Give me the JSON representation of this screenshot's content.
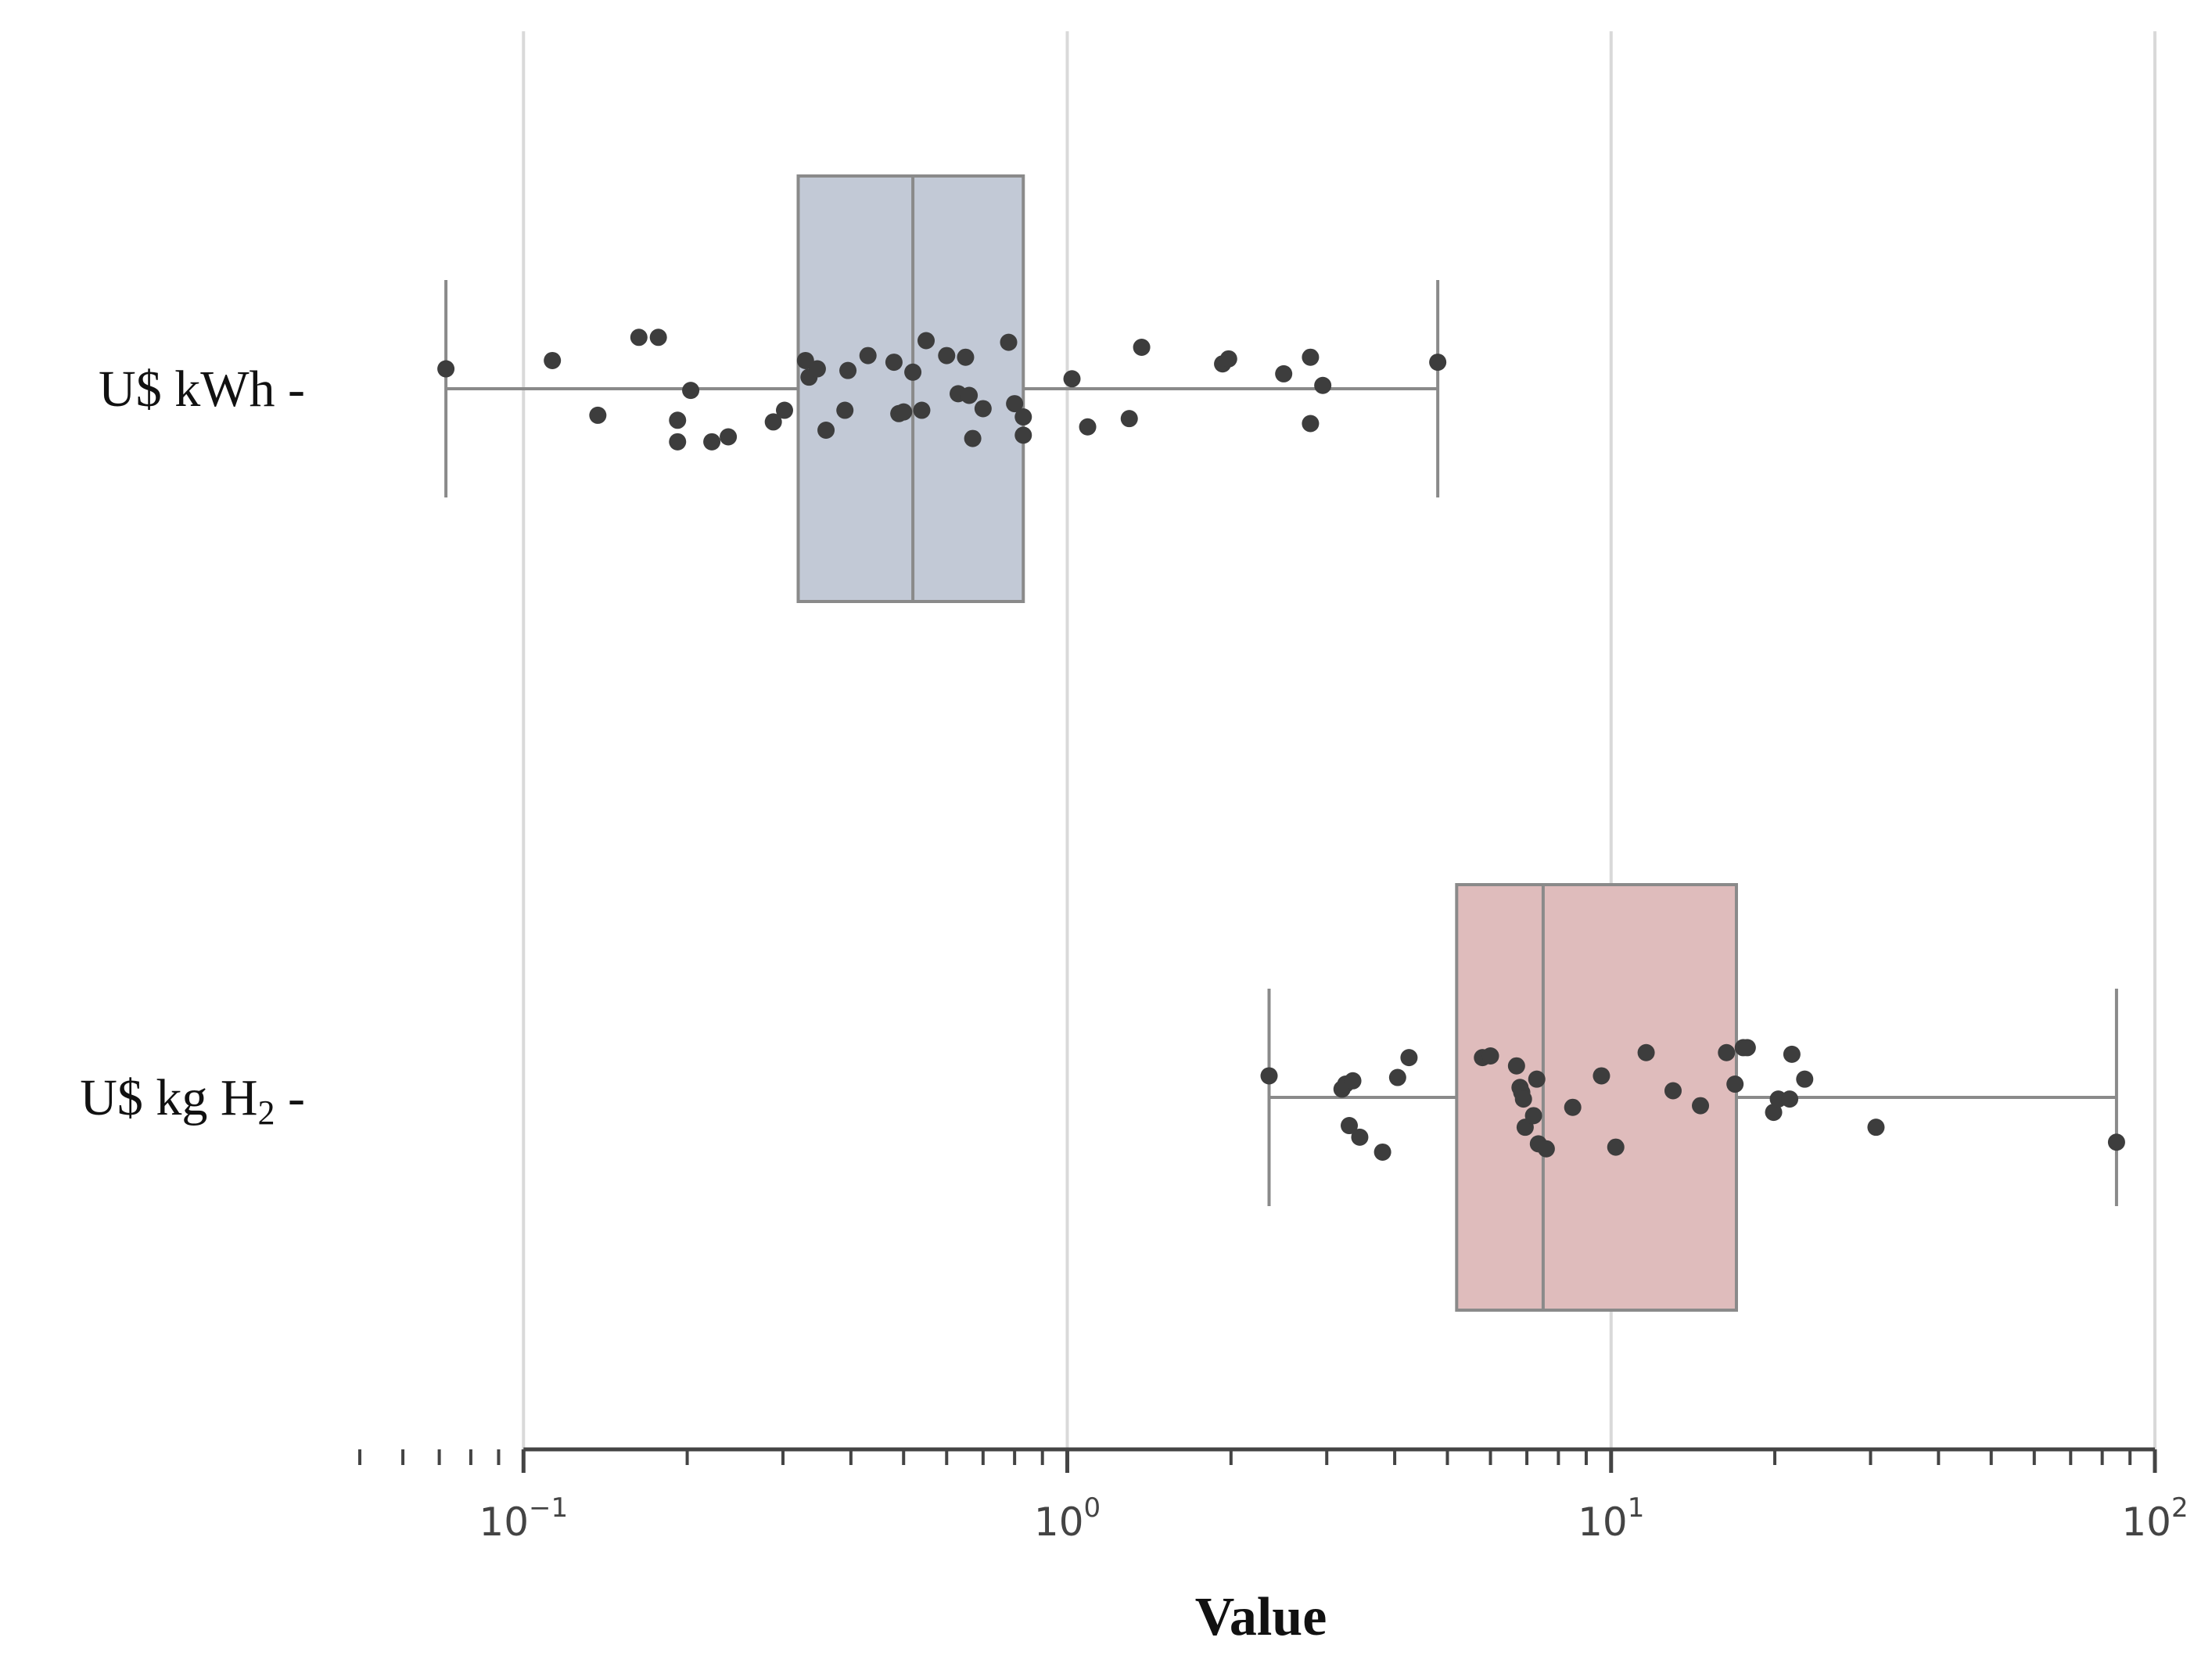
{
  "chart_data": {
    "type": "box",
    "orientation": "horizontal",
    "xscale": "log",
    "xlim": [
      0.05,
      100
    ],
    "xticks": [
      {
        "value": 0.1,
        "base": "10",
        "exp": "−1"
      },
      {
        "value": 1,
        "base": "10",
        "exp": "0"
      },
      {
        "value": 10,
        "base": "10",
        "exp": "1"
      },
      {
        "value": 100,
        "base": "10",
        "exp": "2"
      }
    ],
    "xlabel": "Value",
    "grid": "vertical",
    "categories": [
      {
        "label_main": "U$ kWh",
        "label_sub": "",
        "label_suffix": " -",
        "color": "#c2c9d6",
        "whisker_low": 0.072,
        "q1": 0.32,
        "median": 0.52,
        "q3": 0.83,
        "whisker_high": 4.8,
        "points": [
          {
            "x": 0.072,
            "y": 0.12
          },
          {
            "x": 0.113,
            "y": 0.17
          },
          {
            "x": 0.163,
            "y": 0.31
          },
          {
            "x": 0.177,
            "y": 0.31
          },
          {
            "x": 0.137,
            "y": -0.16
          },
          {
            "x": 0.192,
            "y": -0.19
          },
          {
            "x": 0.192,
            "y": -0.32
          },
          {
            "x": 0.203,
            "y": -0.01
          },
          {
            "x": 0.222,
            "y": -0.32
          },
          {
            "x": 0.238,
            "y": -0.29
          },
          {
            "x": 0.288,
            "y": -0.2
          },
          {
            "x": 0.302,
            "y": -0.13
          },
          {
            "x": 0.33,
            "y": 0.17
          },
          {
            "x": 0.335,
            "y": 0.07
          },
          {
            "x": 0.347,
            "y": 0.12
          },
          {
            "x": 0.36,
            "y": -0.25
          },
          {
            "x": 0.39,
            "y": -0.13
          },
          {
            "x": 0.395,
            "y": 0.11
          },
          {
            "x": 0.43,
            "y": 0.2
          },
          {
            "x": 0.48,
            "y": 0.16
          },
          {
            "x": 0.49,
            "y": -0.15
          },
          {
            "x": 0.5,
            "y": -0.14
          },
          {
            "x": 0.52,
            "y": 0.1
          },
          {
            "x": 0.54,
            "y": -0.13
          },
          {
            "x": 0.55,
            "y": 0.29
          },
          {
            "x": 0.6,
            "y": 0.2
          },
          {
            "x": 0.63,
            "y": -0.03
          },
          {
            "x": 0.65,
            "y": 0.19
          },
          {
            "x": 0.66,
            "y": -0.04
          },
          {
            "x": 0.67,
            "y": -0.3
          },
          {
            "x": 0.7,
            "y": -0.12
          },
          {
            "x": 0.78,
            "y": 0.28
          },
          {
            "x": 0.8,
            "y": -0.09
          },
          {
            "x": 0.83,
            "y": -0.17
          },
          {
            "x": 0.83,
            "y": -0.28
          },
          {
            "x": 1.02,
            "y": 0.06
          },
          {
            "x": 1.09,
            "y": -0.23
          },
          {
            "x": 1.3,
            "y": -0.18
          },
          {
            "x": 1.37,
            "y": 0.25
          },
          {
            "x": 1.93,
            "y": 0.15
          },
          {
            "x": 1.98,
            "y": 0.18
          },
          {
            "x": 2.5,
            "y": 0.09
          },
          {
            "x": 2.8,
            "y": 0.19
          },
          {
            "x": 2.8,
            "y": -0.21
          },
          {
            "x": 2.95,
            "y": 0.02
          },
          {
            "x": 4.8,
            "y": 0.16
          }
        ]
      },
      {
        "label_main": "U$ kg H",
        "label_sub": "2",
        "label_suffix": " -",
        "color": "#dfbcbc",
        "whisker_low": 2.35,
        "q1": 5.2,
        "median": 7.5,
        "q3": 17.0,
        "whisker_high": 85.0,
        "points": [
          {
            "x": 2.35,
            "y": 0.13
          },
          {
            "x": 3.2,
            "y": 0.05
          },
          {
            "x": 3.25,
            "y": 0.08
          },
          {
            "x": 3.35,
            "y": 0.1
          },
          {
            "x": 3.3,
            "y": -0.17
          },
          {
            "x": 3.45,
            "y": -0.24
          },
          {
            "x": 3.8,
            "y": -0.33
          },
          {
            "x": 4.05,
            "y": 0.12
          },
          {
            "x": 4.25,
            "y": 0.24
          },
          {
            "x": 5.8,
            "y": 0.24
          },
          {
            "x": 6.0,
            "y": 0.25
          },
          {
            "x": 6.7,
            "y": 0.19
          },
          {
            "x": 6.8,
            "y": 0.06
          },
          {
            "x": 6.85,
            "y": 0.03
          },
          {
            "x": 6.9,
            "y": -0.01
          },
          {
            "x": 6.95,
            "y": -0.18
          },
          {
            "x": 7.2,
            "y": -0.11
          },
          {
            "x": 7.3,
            "y": 0.11
          },
          {
            "x": 7.35,
            "y": -0.28
          },
          {
            "x": 7.6,
            "y": -0.31
          },
          {
            "x": 8.5,
            "y": -0.06
          },
          {
            "x": 9.6,
            "y": 0.13
          },
          {
            "x": 10.2,
            "y": -0.3
          },
          {
            "x": 11.6,
            "y": 0.27
          },
          {
            "x": 13.0,
            "y": 0.04
          },
          {
            "x": 14.6,
            "y": -0.05
          },
          {
            "x": 16.3,
            "y": 0.27
          },
          {
            "x": 16.9,
            "y": 0.08
          },
          {
            "x": 17.5,
            "y": 0.3
          },
          {
            "x": 17.8,
            "y": 0.3
          },
          {
            "x": 19.9,
            "y": -0.09
          },
          {
            "x": 20.3,
            "y": -0.01
          },
          {
            "x": 21.3,
            "y": -0.01
          },
          {
            "x": 21.5,
            "y": 0.26
          },
          {
            "x": 22.7,
            "y": 0.11
          },
          {
            "x": 30.7,
            "y": -0.18
          },
          {
            "x": 85.0,
            "y": -0.27
          }
        ]
      }
    ]
  }
}
